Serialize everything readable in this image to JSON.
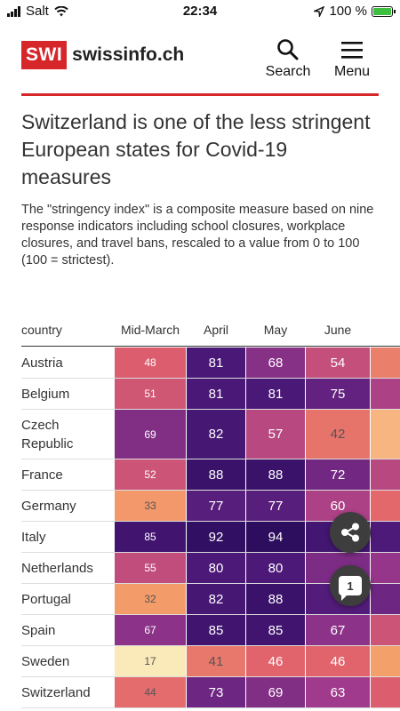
{
  "status_bar": {
    "carrier": "Salt",
    "time": "22:34",
    "battery": "100 %",
    "battery_level": 1.0
  },
  "header": {
    "logo_mark": "SWI",
    "logo_text": "swissinfo.ch",
    "search_label": "Search",
    "menu_label": "Menu",
    "accent_color": "#d7262a"
  },
  "article": {
    "title": "Switzerland is one of the less stringent European states for Covid-19 measures",
    "description": "The \"stringency index\" is a composite measure based on nine response indicators including school closures, workplace closures, and travel bans, rescaled to a value from 0 to 100 (100 = strictest)."
  },
  "chart_data": {
    "type": "heatmap",
    "columns": [
      "Mid-March",
      "April",
      "May",
      "June"
    ],
    "row_header": "country",
    "rows": [
      {
        "country": "Austria",
        "values": [
          48,
          81,
          68,
          54
        ]
      },
      {
        "country": "Belgium",
        "values": [
          51,
          81,
          81,
          75
        ]
      },
      {
        "country": "Czech Republic",
        "values": [
          69,
          82,
          57,
          42
        ]
      },
      {
        "country": "France",
        "values": [
          52,
          88,
          88,
          72
        ]
      },
      {
        "country": "Germany",
        "values": [
          33,
          77,
          77,
          60
        ]
      },
      {
        "country": "Italy",
        "values": [
          85,
          92,
          94,
          null
        ]
      },
      {
        "country": "Netherlands",
        "values": [
          55,
          80,
          80,
          null
        ]
      },
      {
        "country": "Portugal",
        "values": [
          32,
          82,
          88,
          null
        ]
      },
      {
        "country": "Spain",
        "values": [
          67,
          85,
          85,
          67
        ]
      },
      {
        "country": "Sweden",
        "values": [
          17,
          41,
          46,
          46
        ]
      },
      {
        "country": "Switzerland",
        "values": [
          44,
          73,
          69,
          63
        ]
      }
    ],
    "color_scale": [
      "#fbf3c4",
      "#f4a06a",
      "#e0606c",
      "#a03a8c",
      "#4e1a7a",
      "#2a0c5c"
    ],
    "value_range": [
      0,
      100
    ]
  },
  "floating": {
    "comment_count": "1",
    "share_icon": "share-icon",
    "comment_icon": "comment-icon"
  }
}
